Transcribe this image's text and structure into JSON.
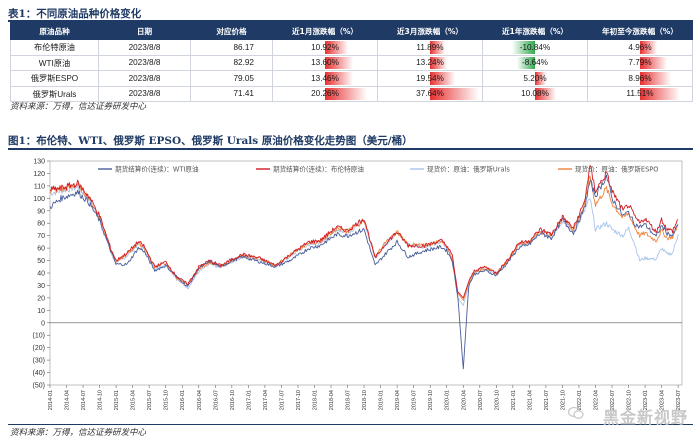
{
  "table_caption": "表1：不同原油品种价格变化",
  "table": {
    "headers": [
      "原油品种",
      "日期",
      "对应价格",
      "近1月涨跌幅（%）",
      "近3月涨跌幅（%）",
      "近1年涨跌幅（%）",
      "年初至今涨跌幅（%）"
    ],
    "rows": [
      {
        "name": "布伦特原油",
        "date": "2023/8/8",
        "price": "86.17",
        "m1": "10.92%",
        "m1v": 10.92,
        "m3": "11.89%",
        "m3v": 11.89,
        "y1": "-10.84%",
        "y1v": -10.84,
        "ytd": "4.96%",
        "ytdv": 4.96
      },
      {
        "name": "WTI原油",
        "date": "2023/8/8",
        "price": "82.92",
        "m1": "13.60%",
        "m1v": 13.6,
        "m3": "13.24%",
        "m3v": 13.24,
        "y1": "-8.64%",
        "y1v": -8.64,
        "ytd": "7.79%",
        "ytdv": 7.79
      },
      {
        "name": "俄罗斯ESPO",
        "date": "2023/8/8",
        "price": "79.05",
        "m1": "13.46%",
        "m1v": 13.46,
        "m3": "19.54%",
        "m3v": 19.54,
        "y1": "5.20%",
        "y1v": 5.2,
        "ytd": "8.96%",
        "ytdv": 8.96
      },
      {
        "name": "俄罗斯Urals",
        "date": "2023/8/8",
        "price": "71.41",
        "m1": "20.26%",
        "m1v": 20.26,
        "m3": "37.64%",
        "m3v": 37.64,
        "y1": "10.08%",
        "y1v": 10.08,
        "ytd": "11.51%",
        "ytdv": 11.51
      }
    ]
  },
  "source1": "资料来源：万得，信达证券研发中心",
  "chart_caption": "图1：布伦特、WTI、俄罗斯 EPSO、俄罗斯 Urals 原油价格变化走势图（美元/桶）",
  "source2": "资料来源：万得，信达证券研发中心",
  "watermark": "黑金新视野",
  "colors": {
    "header": "#1f3a64",
    "red_bar": "#e83030",
    "green_bar": "#2faa4e",
    "wti": "#4a5f9a",
    "brent": "#d01c24",
    "urals": "#a9c4ec",
    "espo": "#f0813a"
  },
  "chart_data": {
    "type": "line",
    "ylim": [
      -50,
      130
    ],
    "yticks": [
      "(50)",
      "(40)",
      "(30)",
      "(20)",
      "(10)",
      "0",
      "10",
      "20",
      "30",
      "40",
      "50",
      "60",
      "70",
      "80",
      "90",
      "100",
      "110",
      "120",
      "130"
    ],
    "x_start": "2014-01",
    "x_end": "2023-07",
    "xticks": [
      "2014-01",
      "2014-04",
      "2014-07",
      "2014-10",
      "2015-01",
      "2015-04",
      "2015-07",
      "2015-10",
      "2016-01",
      "2016-04",
      "2016-07",
      "2016-10",
      "2017-01",
      "2017-04",
      "2017-07",
      "2017-10",
      "2018-01",
      "2018-04",
      "2018-07",
      "2018-10",
      "2019-01",
      "2019-04",
      "2019-07",
      "2019-10",
      "2020-01",
      "2020-04",
      "2020-07",
      "2020-10",
      "2021-01",
      "2021-04",
      "2021-07",
      "2021-10",
      "2022-01",
      "2022-04",
      "2022-07",
      "2022-10",
      "2023-01",
      "2023-04",
      "2023-07"
    ],
    "series": [
      {
        "name": "期货结算价(连续)：WTI原油",
        "color": "#4a5f9a",
        "points": [
          [
            "2014-01",
            93
          ],
          [
            "2014-03",
            100
          ],
          [
            "2014-06",
            105
          ],
          [
            "2014-08",
            97
          ],
          [
            "2014-10",
            82
          ],
          [
            "2014-12",
            58
          ],
          [
            "2015-01",
            47
          ],
          [
            "2015-03",
            47
          ],
          [
            "2015-05",
            60
          ],
          [
            "2015-06",
            58
          ],
          [
            "2015-08",
            42
          ],
          [
            "2015-10",
            46
          ],
          [
            "2015-12",
            37
          ],
          [
            "2016-02",
            29
          ],
          [
            "2016-04",
            44
          ],
          [
            "2016-06",
            49
          ],
          [
            "2016-08",
            45
          ],
          [
            "2016-10",
            50
          ],
          [
            "2016-12",
            53
          ],
          [
            "2017-03",
            49
          ],
          [
            "2017-06",
            45
          ],
          [
            "2017-09",
            51
          ],
          [
            "2017-12",
            60
          ],
          [
            "2018-02",
            62
          ],
          [
            "2018-05",
            71
          ],
          [
            "2018-07",
            70
          ],
          [
            "2018-10",
            75
          ],
          [
            "2018-12",
            46
          ],
          [
            "2019-02",
            56
          ],
          [
            "2019-04",
            65
          ],
          [
            "2019-06",
            53
          ],
          [
            "2019-09",
            58
          ],
          [
            "2019-12",
            61
          ],
          [
            "2020-01",
            58
          ],
          [
            "2020-02",
            50
          ],
          [
            "2020-03",
            22
          ],
          [
            "2020-04",
            -37
          ],
          [
            "2020-05",
            30
          ],
          [
            "2020-06",
            39
          ],
          [
            "2020-08",
            42
          ],
          [
            "2020-10",
            38
          ],
          [
            "2020-12",
            48
          ],
          [
            "2021-02",
            60
          ],
          [
            "2021-04",
            63
          ],
          [
            "2021-06",
            72
          ],
          [
            "2021-08",
            68
          ],
          [
            "2021-10",
            83
          ],
          [
            "2021-12",
            72
          ],
          [
            "2022-02",
            92
          ],
          [
            "2022-03",
            114
          ],
          [
            "2022-04",
            102
          ],
          [
            "2022-06",
            118
          ],
          [
            "2022-07",
            100
          ],
          [
            "2022-09",
            86
          ],
          [
            "2022-10",
            89
          ],
          [
            "2022-11",
            80
          ],
          [
            "2022-12",
            77
          ],
          [
            "2023-01",
            79
          ],
          [
            "2023-03",
            69
          ],
          [
            "2023-04",
            78
          ],
          [
            "2023-05",
            72
          ],
          [
            "2023-06",
            70
          ],
          [
            "2023-07",
            79
          ]
        ]
      },
      {
        "name": "期货结算价(连续)：布伦特原油",
        "color": "#d01c24",
        "points": [
          [
            "2014-01",
            107
          ],
          [
            "2014-03",
            108
          ],
          [
            "2014-06",
            112
          ],
          [
            "2014-08",
            102
          ],
          [
            "2014-10",
            86
          ],
          [
            "2014-12",
            60
          ],
          [
            "2015-01",
            50
          ],
          [
            "2015-03",
            56
          ],
          [
            "2015-05",
            65
          ],
          [
            "2015-06",
            62
          ],
          [
            "2015-08",
            45
          ],
          [
            "2015-10",
            49
          ],
          [
            "2015-12",
            37
          ],
          [
            "2016-02",
            31
          ],
          [
            "2016-04",
            45
          ],
          [
            "2016-06",
            50
          ],
          [
            "2016-08",
            46
          ],
          [
            "2016-10",
            51
          ],
          [
            "2016-12",
            55
          ],
          [
            "2017-03",
            52
          ],
          [
            "2017-06",
            46
          ],
          [
            "2017-09",
            56
          ],
          [
            "2017-12",
            65
          ],
          [
            "2018-02",
            66
          ],
          [
            "2018-05",
            77
          ],
          [
            "2018-07",
            74
          ],
          [
            "2018-10",
            84
          ],
          [
            "2018-12",
            52
          ],
          [
            "2019-02",
            64
          ],
          [
            "2019-04",
            73
          ],
          [
            "2019-06",
            62
          ],
          [
            "2019-09",
            62
          ],
          [
            "2019-12",
            66
          ],
          [
            "2020-01",
            62
          ],
          [
            "2020-02",
            54
          ],
          [
            "2020-03",
            25
          ],
          [
            "2020-04",
            20
          ],
          [
            "2020-05",
            33
          ],
          [
            "2020-06",
            42
          ],
          [
            "2020-08",
            45
          ],
          [
            "2020-10",
            40
          ],
          [
            "2020-12",
            50
          ],
          [
            "2021-02",
            64
          ],
          [
            "2021-04",
            66
          ],
          [
            "2021-06",
            75
          ],
          [
            "2021-08",
            71
          ],
          [
            "2021-10",
            85
          ],
          [
            "2021-12",
            76
          ],
          [
            "2022-02",
            97
          ],
          [
            "2022-03",
            126
          ],
          [
            "2022-04",
            106
          ],
          [
            "2022-06",
            120
          ],
          [
            "2022-07",
            106
          ],
          [
            "2022-09",
            90
          ],
          [
            "2022-10",
            95
          ],
          [
            "2022-11",
            86
          ],
          [
            "2022-12",
            80
          ],
          [
            "2023-01",
            84
          ],
          [
            "2023-03",
            73
          ],
          [
            "2023-04",
            83
          ],
          [
            "2023-05",
            75
          ],
          [
            "2023-06",
            74
          ],
          [
            "2023-07",
            83
          ]
        ]
      },
      {
        "name": "现货价：原油：俄罗斯Urals",
        "color": "#a9c4ec",
        "points": [
          [
            "2014-01",
            104
          ],
          [
            "2014-03",
            106
          ],
          [
            "2014-06",
            109
          ],
          [
            "2014-08",
            100
          ],
          [
            "2014-10",
            84
          ],
          [
            "2014-12",
            57
          ],
          [
            "2015-01",
            47
          ],
          [
            "2015-03",
            54
          ],
          [
            "2015-05",
            63
          ],
          [
            "2015-06",
            60
          ],
          [
            "2015-08",
            43
          ],
          [
            "2015-10",
            47
          ],
          [
            "2015-12",
            35
          ],
          [
            "2016-02",
            28
          ],
          [
            "2016-04",
            41
          ],
          [
            "2016-06",
            47
          ],
          [
            "2016-08",
            44
          ],
          [
            "2016-10",
            49
          ],
          [
            "2016-12",
            53
          ],
          [
            "2017-03",
            51
          ],
          [
            "2017-06",
            45
          ],
          [
            "2017-09",
            55
          ],
          [
            "2017-12",
            63
          ],
          [
            "2018-02",
            63
          ],
          [
            "2018-05",
            75
          ],
          [
            "2018-07",
            72
          ],
          [
            "2018-10",
            82
          ],
          [
            "2018-12",
            52
          ],
          [
            "2019-02",
            64
          ],
          [
            "2019-04",
            72
          ],
          [
            "2019-06",
            63
          ],
          [
            "2019-09",
            61
          ],
          [
            "2019-12",
            65
          ],
          [
            "2020-01",
            60
          ],
          [
            "2020-02",
            50
          ],
          [
            "2020-03",
            20
          ],
          [
            "2020-04",
            14
          ],
          [
            "2020-05",
            30
          ],
          [
            "2020-06",
            40
          ],
          [
            "2020-08",
            44
          ],
          [
            "2020-10",
            39
          ],
          [
            "2020-12",
            49
          ],
          [
            "2021-02",
            62
          ],
          [
            "2021-04",
            63
          ],
          [
            "2021-06",
            73
          ],
          [
            "2021-08",
            69
          ],
          [
            "2021-10",
            82
          ],
          [
            "2021-12",
            73
          ],
          [
            "2022-02",
            90
          ],
          [
            "2022-03",
            100
          ],
          [
            "2022-04",
            75
          ],
          [
            "2022-06",
            80
          ],
          [
            "2022-07",
            75
          ],
          [
            "2022-09",
            70
          ],
          [
            "2022-10",
            76
          ],
          [
            "2022-11",
            65
          ],
          [
            "2022-12",
            50
          ],
          [
            "2023-01",
            52
          ],
          [
            "2023-03",
            51
          ],
          [
            "2023-04",
            60
          ],
          [
            "2023-05",
            55
          ],
          [
            "2023-06",
            56
          ],
          [
            "2023-07",
            71
          ]
        ]
      },
      {
        "name": "现货价：原油：俄罗斯ESPO",
        "color": "#f0813a",
        "points": [
          [
            "2014-01",
            106
          ],
          [
            "2014-03",
            107
          ],
          [
            "2014-06",
            111
          ],
          [
            "2014-08",
            101
          ],
          [
            "2014-10",
            85
          ],
          [
            "2014-12",
            59
          ],
          [
            "2015-01",
            49
          ],
          [
            "2015-03",
            55
          ],
          [
            "2015-05",
            64
          ],
          [
            "2015-06",
            61
          ],
          [
            "2015-08",
            45
          ],
          [
            "2015-10",
            48
          ],
          [
            "2015-12",
            36
          ],
          [
            "2016-02",
            30
          ],
          [
            "2016-04",
            43
          ],
          [
            "2016-06",
            49
          ],
          [
            "2016-08",
            45
          ],
          [
            "2016-10",
            50
          ],
          [
            "2016-12",
            54
          ],
          [
            "2017-03",
            52
          ],
          [
            "2017-06",
            46
          ],
          [
            "2017-09",
            56
          ],
          [
            "2017-12",
            64
          ],
          [
            "2018-02",
            65
          ],
          [
            "2018-05",
            76
          ],
          [
            "2018-07",
            73
          ],
          [
            "2018-10",
            83
          ],
          [
            "2018-12",
            53
          ],
          [
            "2019-02",
            65
          ],
          [
            "2019-04",
            73
          ],
          [
            "2019-06",
            63
          ],
          [
            "2019-09",
            62
          ],
          [
            "2019-12",
            66
          ],
          [
            "2020-01",
            62
          ],
          [
            "2020-02",
            52
          ],
          [
            "2020-03",
            24
          ],
          [
            "2020-04",
            18
          ],
          [
            "2020-05",
            32
          ],
          [
            "2020-06",
            41
          ],
          [
            "2020-08",
            44
          ],
          [
            "2020-10",
            40
          ],
          [
            "2020-12",
            50
          ],
          [
            "2021-02",
            63
          ],
          [
            "2021-04",
            65
          ],
          [
            "2021-06",
            74
          ],
          [
            "2021-08",
            70
          ],
          [
            "2021-10",
            84
          ],
          [
            "2021-12",
            75
          ],
          [
            "2022-02",
            94
          ],
          [
            "2022-03",
            118
          ],
          [
            "2022-04",
            95
          ],
          [
            "2022-06",
            108
          ],
          [
            "2022-07",
            96
          ],
          [
            "2022-09",
            84
          ],
          [
            "2022-10",
            88
          ],
          [
            "2022-11",
            78
          ],
          [
            "2022-12",
            70
          ],
          [
            "2023-01",
            72
          ],
          [
            "2023-03",
            66
          ],
          [
            "2023-04",
            74
          ],
          [
            "2023-05",
            68
          ],
          [
            "2023-06",
            69
          ],
          [
            "2023-07",
            79
          ]
        ]
      }
    ]
  }
}
